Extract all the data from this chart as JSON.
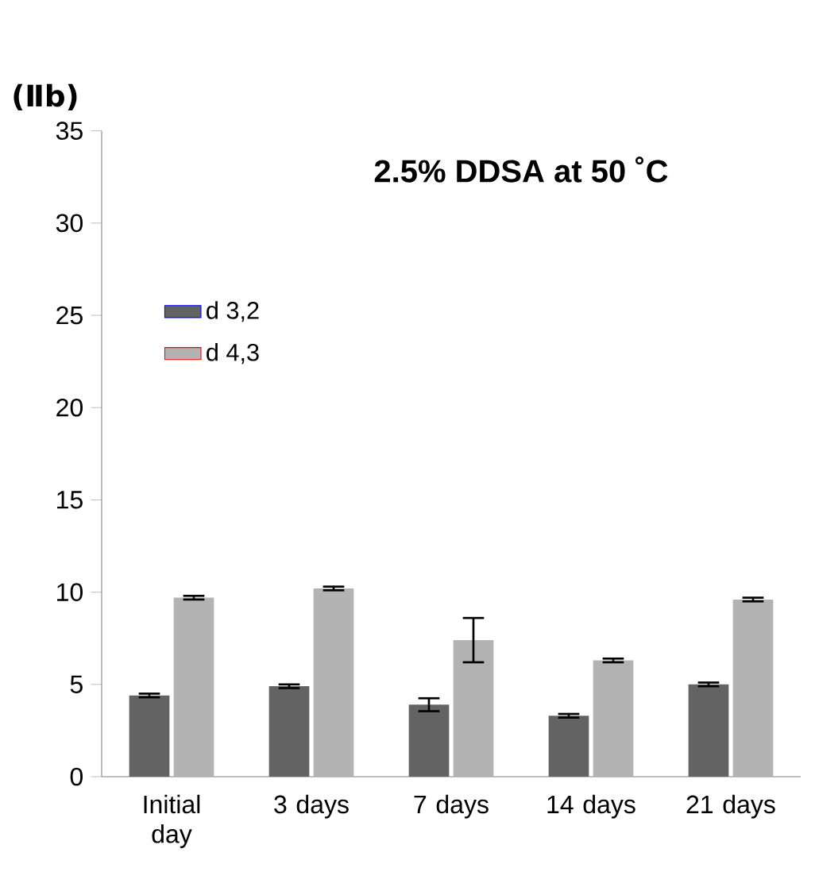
{
  "chart_data": {
    "type": "bar",
    "title": "2.5% DDSA at 50 ˚C",
    "annotations": [
      "(Ⅱb)"
    ],
    "categories": [
      "Initial day",
      "3 days",
      "7 days",
      "14 days",
      "21 days"
    ],
    "series": [
      {
        "name": "d 3,2",
        "color": "#636363",
        "values": [
          4.4,
          4.9,
          3.9,
          3.3,
          5.0
        ],
        "errors": [
          0.1,
          0.1,
          0.35,
          0.1,
          0.1
        ]
      },
      {
        "name": "d 4,3",
        "color": "#b3b3b3",
        "values": [
          9.7,
          10.2,
          7.4,
          6.3,
          9.6
        ],
        "errors": [
          0.1,
          0.1,
          1.2,
          0.1,
          0.1
        ]
      }
    ],
    "ylim": [
      0,
      35
    ],
    "yticks": [
      0,
      5,
      10,
      15,
      20,
      25,
      30,
      35
    ],
    "grid": false,
    "legend": "top left"
  }
}
